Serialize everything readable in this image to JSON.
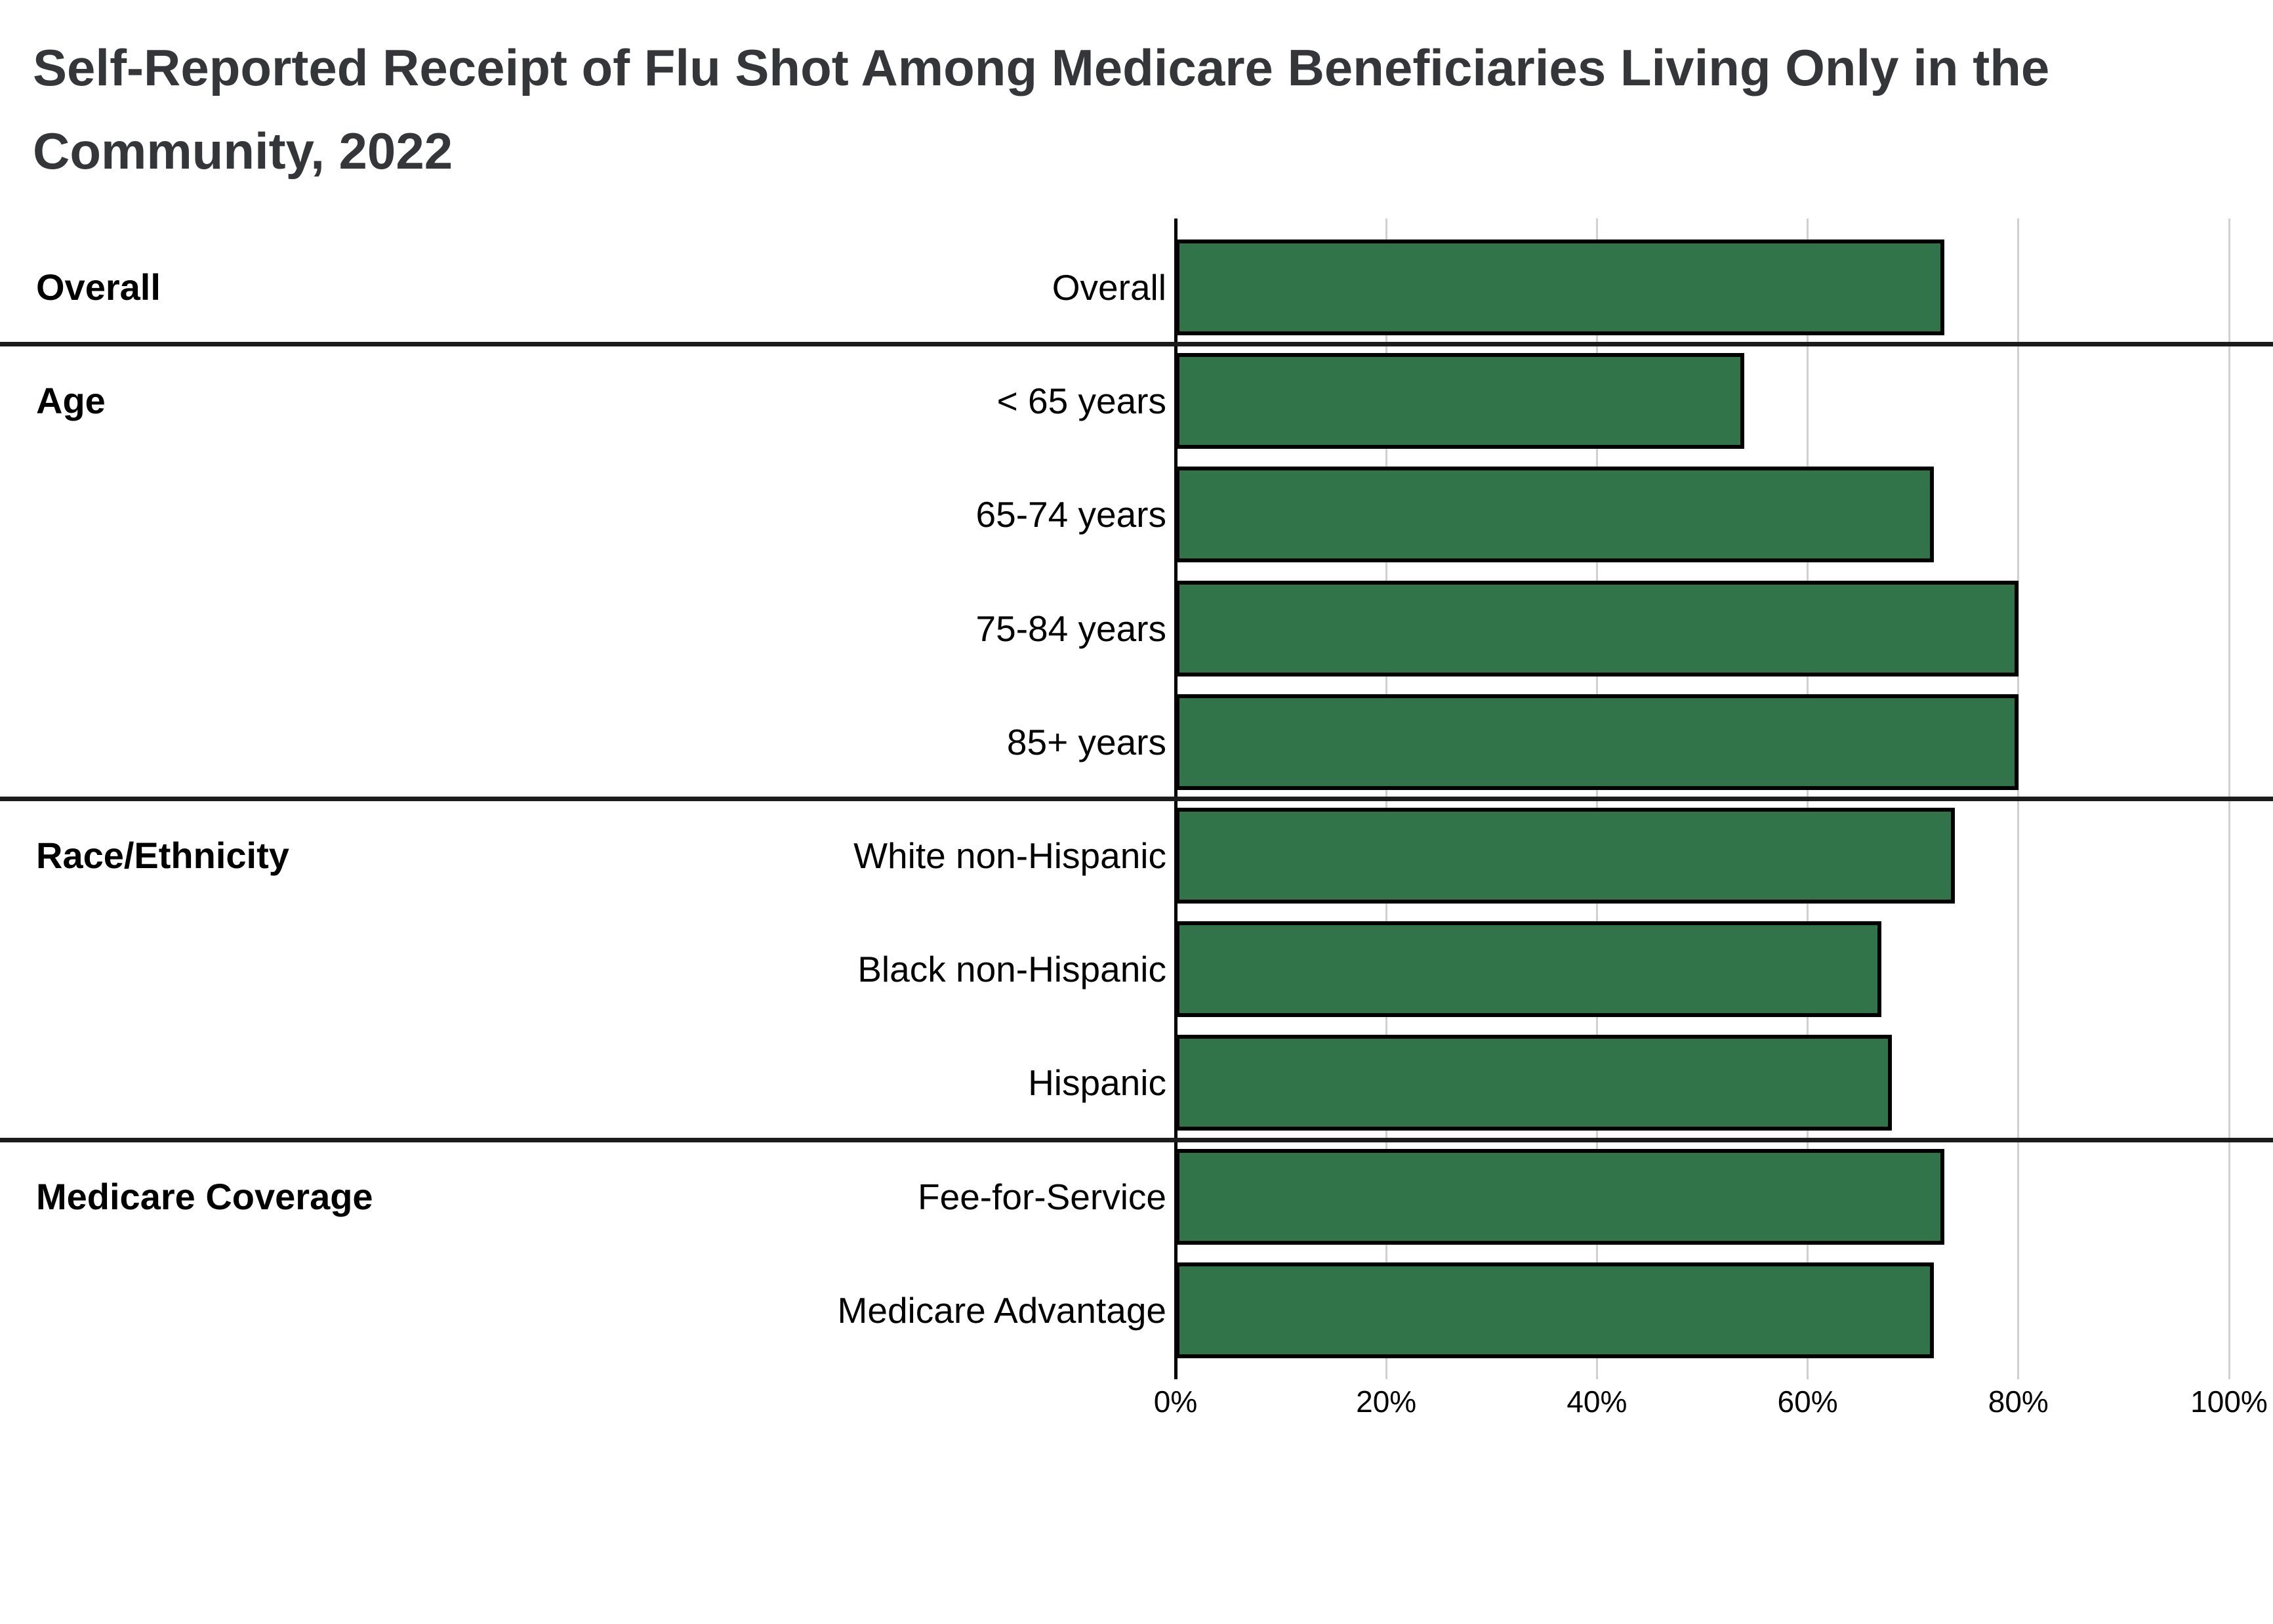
{
  "title": {
    "line1": "Self-Reported Receipt of Flu Shot Among Medicare Beneficiaries Living Only in the",
    "line2": "Community, 2022"
  },
  "chart_data": {
    "type": "bar",
    "orientation": "horizontal",
    "title": "Self-Reported Receipt of Flu Shot Among Medicare Beneficiaries Living Only in the Community, 2022",
    "xlim": [
      0,
      100
    ],
    "x_tick_labels": [
      "0%",
      "20%",
      "40%",
      "60%",
      "80%",
      "100%"
    ],
    "x_tick_values": [
      0,
      20,
      40,
      60,
      80,
      100
    ],
    "grid": "vertical",
    "unit": "%",
    "bar_color": "#32744A",
    "bar_border_color": "#000000",
    "gridline_color": "#d0d0d0",
    "axis_line_color": "#000000",
    "divider_color": "#1c1c1c",
    "sections": [
      {
        "header": "Overall",
        "rows": [
          {
            "label": "Overall",
            "value": 73
          }
        ]
      },
      {
        "header": "Age",
        "rows": [
          {
            "label": "< 65 years",
            "value": 54
          },
          {
            "label": "65-74 years",
            "value": 72
          },
          {
            "label": "75-84 years",
            "value": 80
          },
          {
            "label": "85+ years",
            "value": 80
          }
        ]
      },
      {
        "header": "Race/Ethnicity",
        "rows": [
          {
            "label": "White non-Hispanic",
            "value": 74
          },
          {
            "label": "Black non-Hispanic",
            "value": 67
          },
          {
            "label": "Hispanic",
            "value": 68
          }
        ]
      },
      {
        "header": "Medicare Coverage",
        "rows": [
          {
            "label": "Fee-for-Service",
            "value": 73
          },
          {
            "label": "Medicare Advantage",
            "value": 72
          }
        ]
      }
    ]
  }
}
